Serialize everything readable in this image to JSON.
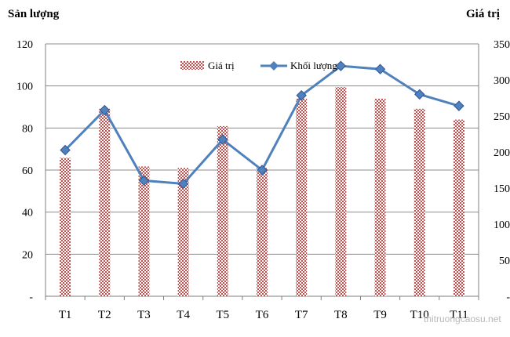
{
  "chart_data": {
    "type": "bar+line",
    "categories": [
      "T1",
      "T2",
      "T3",
      "T4",
      "T5",
      "T6",
      "T7",
      "T8",
      "T9",
      "T10",
      "T11"
    ],
    "left_axis": {
      "title": "Sản lượng",
      "ylim": [
        0,
        120
      ],
      "ticks": [
        0,
        20,
        40,
        60,
        80,
        100,
        120
      ],
      "tick_labels": [
        "-",
        "20",
        "40",
        "60",
        "80",
        "100",
        "120"
      ]
    },
    "right_axis": {
      "title": "Giá trị",
      "ylim": [
        0,
        350
      ],
      "ticks": [
        0,
        50,
        100,
        150,
        200,
        250,
        300,
        350
      ],
      "tick_labels": [
        "-",
        "50",
        "100",
        "150",
        "200",
        "250",
        "300",
        "350"
      ]
    },
    "series": [
      {
        "name": "Giá trị",
        "type": "bar",
        "axis": "right",
        "pattern": "checker",
        "color": "#c0504d",
        "values": [
          192,
          260,
          180,
          178,
          236,
          178,
          274,
          290,
          274,
          260,
          245
        ]
      },
      {
        "name": "Khối lượng",
        "type": "line",
        "axis": "left",
        "marker": "diamond",
        "color": "#4f81bd",
        "values": [
          69.5,
          88.5,
          55,
          53.5,
          74.5,
          60,
          95.5,
          109.5,
          108,
          96,
          90.5
        ]
      }
    ],
    "legend_position": "top-center",
    "grid": true
  },
  "watermark": "thitruongcaosu.net"
}
